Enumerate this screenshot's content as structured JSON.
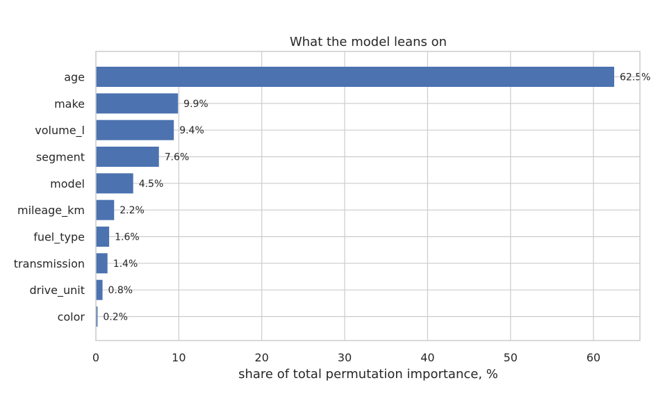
{
  "chart_data": {
    "type": "bar",
    "orientation": "horizontal",
    "title": "What the model leans on",
    "xlabel": "share of total permutation importance, %",
    "ylabel": "",
    "categories": [
      "age",
      "make",
      "volume_l",
      "segment",
      "model",
      "mileage_km",
      "fuel_type",
      "transmission",
      "drive_unit",
      "color"
    ],
    "values": [
      62.5,
      9.9,
      9.4,
      7.6,
      4.5,
      2.2,
      1.6,
      1.4,
      0.8,
      0.2
    ],
    "data_labels": [
      "62.5%",
      "9.9%",
      "9.4%",
      "7.6%",
      "4.5%",
      "2.2%",
      "1.6%",
      "1.4%",
      "0.8%",
      "0.2%"
    ],
    "xlim": [
      0,
      65.6
    ],
    "xticks": [
      0,
      10,
      20,
      30,
      40,
      50,
      60
    ],
    "xtick_labels": [
      "0",
      "10",
      "20",
      "30",
      "40",
      "50",
      "60"
    ],
    "grid": true,
    "bar_color": "#4c72b0",
    "grid_color": "#cccccc"
  }
}
